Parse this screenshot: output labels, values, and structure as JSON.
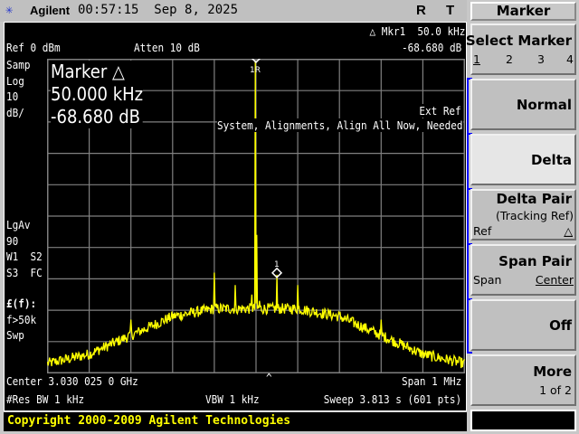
{
  "header": {
    "logo_icon": "agilent-spark-icon",
    "brand": "Agilent",
    "time": "00:57:15",
    "date": "Sep 8, 2025",
    "indicators": [
      "R",
      "T"
    ]
  },
  "display": {
    "marker_readout_top": "△ Mkr1  50.0 kHz",
    "marker_readout_value": "-68.680 dB",
    "ref_level": "Ref 0 dBm",
    "atten": "Atten 10 dB",
    "left_annotations": [
      "Samp",
      "Log",
      "10",
      "dB/"
    ],
    "left_annotations_lower": [
      "LgAv",
      "90",
      "W1  S2",
      "S3  FC"
    ],
    "left_annotations_bottom": [
      "£(f):",
      "f>50k",
      "Swp"
    ],
    "marker_box": {
      "title": "Marker △",
      "freq": "50.000 kHz",
      "level": "-68.680 dB"
    },
    "ext_ref": "Ext Ref",
    "alignment_msg": "System, Alignments, Align All Now, Needed",
    "ref_marker_label": "1R",
    "delta_marker_label": "1",
    "center_caret": "^",
    "center": "Center 3.030 025 0 GHz",
    "span": "Span 1 MHz",
    "rbw": "#Res BW 1 kHz",
    "vbw": "VBW 1 kHz",
    "sweep": "Sweep 3.813 s (601 pts)"
  },
  "chart_data": {
    "type": "line",
    "x_unit": "kHz offset from center",
    "xlim": [
      -500,
      500
    ],
    "ylim": [
      -100,
      0
    ],
    "y_unit": "dBm",
    "divisions": 10,
    "grid": true,
    "trace_color": "#ffff00",
    "points": 601,
    "noise_profile": {
      "x": [
        -500,
        -400,
        -300,
        -200,
        -100,
        -50,
        0,
        50,
        100,
        200,
        300,
        400,
        500
      ],
      "y": [
        -97,
        -94,
        -88,
        -82,
        -79.5,
        -79.5,
        -79.5,
        -79.5,
        -79.5,
        -82,
        -88,
        -94,
        -97
      ]
    },
    "spurs": [
      {
        "x": -300,
        "y": -83
      },
      {
        "x": -100,
        "y": -68
      },
      {
        "x": -50,
        "y": -72
      },
      {
        "x": -10,
        "y": -75
      },
      {
        "x": -2,
        "y": -0.5
      },
      {
        "x": 2,
        "y": -56
      },
      {
        "x": 8,
        "y": -77
      },
      {
        "x": 50,
        "y": -68.7
      },
      {
        "x": 100,
        "y": -72
      },
      {
        "x": 300,
        "y": -83
      }
    ],
    "ref_marker": {
      "x": 0,
      "y": 0
    },
    "delta_marker": {
      "x": 50,
      "y": -68.68
    }
  },
  "softkeys": {
    "title": "Marker",
    "select_marker": {
      "label": "Select Marker",
      "options": [
        "1",
        "2",
        "3",
        "4"
      ],
      "selected": "1"
    },
    "normal": "Normal",
    "delta": "Delta",
    "delta_pair": {
      "label": "Delta Pair",
      "sub": "(Tracking Ref)",
      "left": "Ref",
      "right": "△"
    },
    "span_pair": {
      "label": "Span Pair",
      "left": "Span",
      "right": "Center"
    },
    "off": "Off",
    "more": {
      "label": "More",
      "sub": "1 of 2"
    }
  },
  "footer": {
    "copyright": "Copyright 2000-2009 Agilent Technologies"
  }
}
